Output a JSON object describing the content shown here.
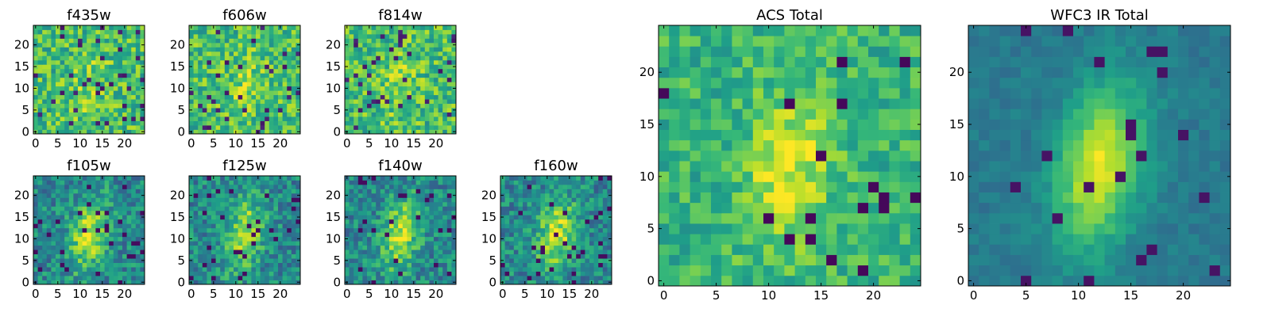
{
  "chart_data": [
    {
      "type": "heatmap",
      "title": "f435w",
      "image_shape": [
        25,
        25
      ],
      "colormap": "viridis",
      "x_ticks": [
        "0",
        "5",
        "10",
        "15",
        "20"
      ],
      "y_ticks": [
        "0",
        "5",
        "10",
        "15",
        "20"
      ],
      "pattern": "noise"
    },
    {
      "type": "heatmap",
      "title": "f606w",
      "image_shape": [
        25,
        25
      ],
      "colormap": "viridis",
      "x_ticks": [
        "0",
        "5",
        "10",
        "15",
        "20"
      ],
      "y_ticks": [
        "0",
        "5",
        "10",
        "15",
        "20"
      ],
      "pattern": "noise"
    },
    {
      "type": "heatmap",
      "title": "f814w",
      "image_shape": [
        25,
        25
      ],
      "colormap": "viridis",
      "x_ticks": [
        "0",
        "5",
        "10",
        "15",
        "20"
      ],
      "y_ticks": [
        "0",
        "5",
        "10",
        "15",
        "20"
      ],
      "pattern": "noise"
    },
    {
      "type": "heatmap",
      "title": "f105w",
      "image_shape": [
        25,
        25
      ],
      "colormap": "viridis",
      "x_ticks": [
        "0",
        "5",
        "10",
        "15",
        "20"
      ],
      "y_ticks": [
        "0",
        "5",
        "10",
        "15",
        "20"
      ],
      "pattern": "galaxy"
    },
    {
      "type": "heatmap",
      "title": "f125w",
      "image_shape": [
        25,
        25
      ],
      "colormap": "viridis",
      "x_ticks": [
        "0",
        "5",
        "10",
        "15",
        "20"
      ],
      "y_ticks": [
        "0",
        "5",
        "10",
        "15",
        "20"
      ],
      "pattern": "galaxy"
    },
    {
      "type": "heatmap",
      "title": "f140w",
      "image_shape": [
        25,
        25
      ],
      "colormap": "viridis",
      "x_ticks": [
        "0",
        "5",
        "10",
        "15",
        "20"
      ],
      "y_ticks": [
        "0",
        "5",
        "10",
        "15",
        "20"
      ],
      "pattern": "galaxy"
    },
    {
      "type": "heatmap",
      "title": "f160w",
      "image_shape": [
        25,
        25
      ],
      "colormap": "viridis",
      "x_ticks": [
        "0",
        "5",
        "10",
        "15",
        "20"
      ],
      "y_ticks": [
        "0",
        "5",
        "10",
        "15",
        "20"
      ],
      "pattern": "galaxy"
    },
    {
      "type": "heatmap",
      "title": "ACS Total",
      "image_shape": [
        25,
        25
      ],
      "colormap": "viridis",
      "x_ticks": [
        "0",
        "5",
        "10",
        "15",
        "20"
      ],
      "y_ticks": [
        "0",
        "5",
        "10",
        "15",
        "20"
      ],
      "pattern": "noisy-galaxy"
    },
    {
      "type": "heatmap",
      "title": "WFC3 IR Total",
      "image_shape": [
        25,
        25
      ],
      "colormap": "viridis",
      "x_ticks": [
        "0",
        "5",
        "10",
        "15",
        "20"
      ],
      "y_ticks": [
        "0",
        "5",
        "10",
        "15",
        "20"
      ],
      "pattern": "smooth-galaxy"
    }
  ]
}
